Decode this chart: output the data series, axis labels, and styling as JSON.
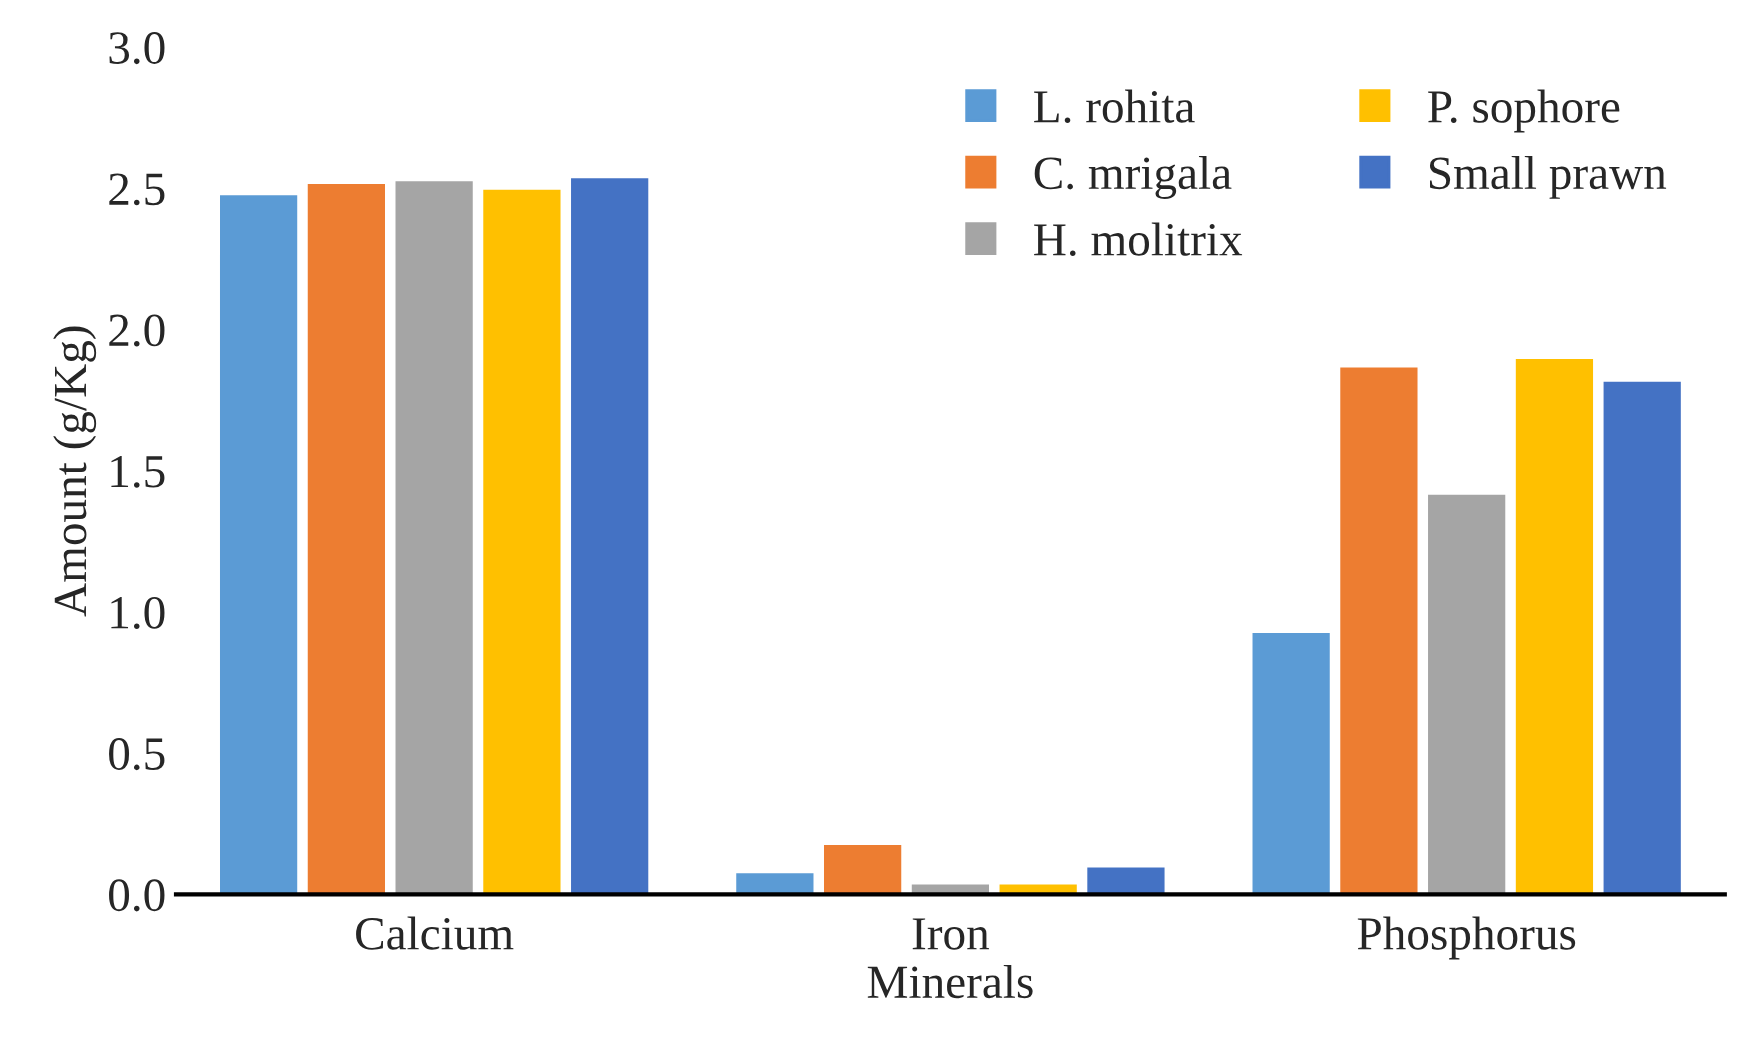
{
  "chart_data": {
    "type": "bar",
    "xlabel": "Minerals",
    "ylabel": "Amount (g/Kg)",
    "categories": [
      "Calcium",
      "Iron",
      "Phosphorus"
    ],
    "series": [
      {
        "name": "L. rohita",
        "color": "#5b9bd5",
        "values": [
          2.48,
          0.08,
          0.93
        ]
      },
      {
        "name": "C. mrigala",
        "color": "#ed7d31",
        "values": [
          2.52,
          0.18,
          1.87
        ]
      },
      {
        "name": "H. molitrix",
        "color": "#a5a5a5",
        "values": [
          2.53,
          0.04,
          1.42
        ]
      },
      {
        "name": "P. sophore",
        "color": "#ffc000",
        "values": [
          2.5,
          0.04,
          1.9
        ]
      },
      {
        "name": "Small prawn",
        "color": "#4472c4",
        "values": [
          2.54,
          0.1,
          1.82
        ]
      }
    ],
    "ylim": [
      0,
      3.0
    ],
    "yticks": [
      {
        "value": 0,
        "label": "0.0"
      },
      {
        "value": 0.5,
        "label": "0.5"
      },
      {
        "value": 1.0,
        "label": "1.0"
      },
      {
        "value": 1.5,
        "label": "1.5"
      },
      {
        "value": 2.0,
        "label": "2.0"
      },
      {
        "value": 2.5,
        "label": "2.5"
      },
      {
        "value": 3.0,
        "label": "3.0"
      }
    ],
    "grid": false,
    "legend": "top right"
  }
}
